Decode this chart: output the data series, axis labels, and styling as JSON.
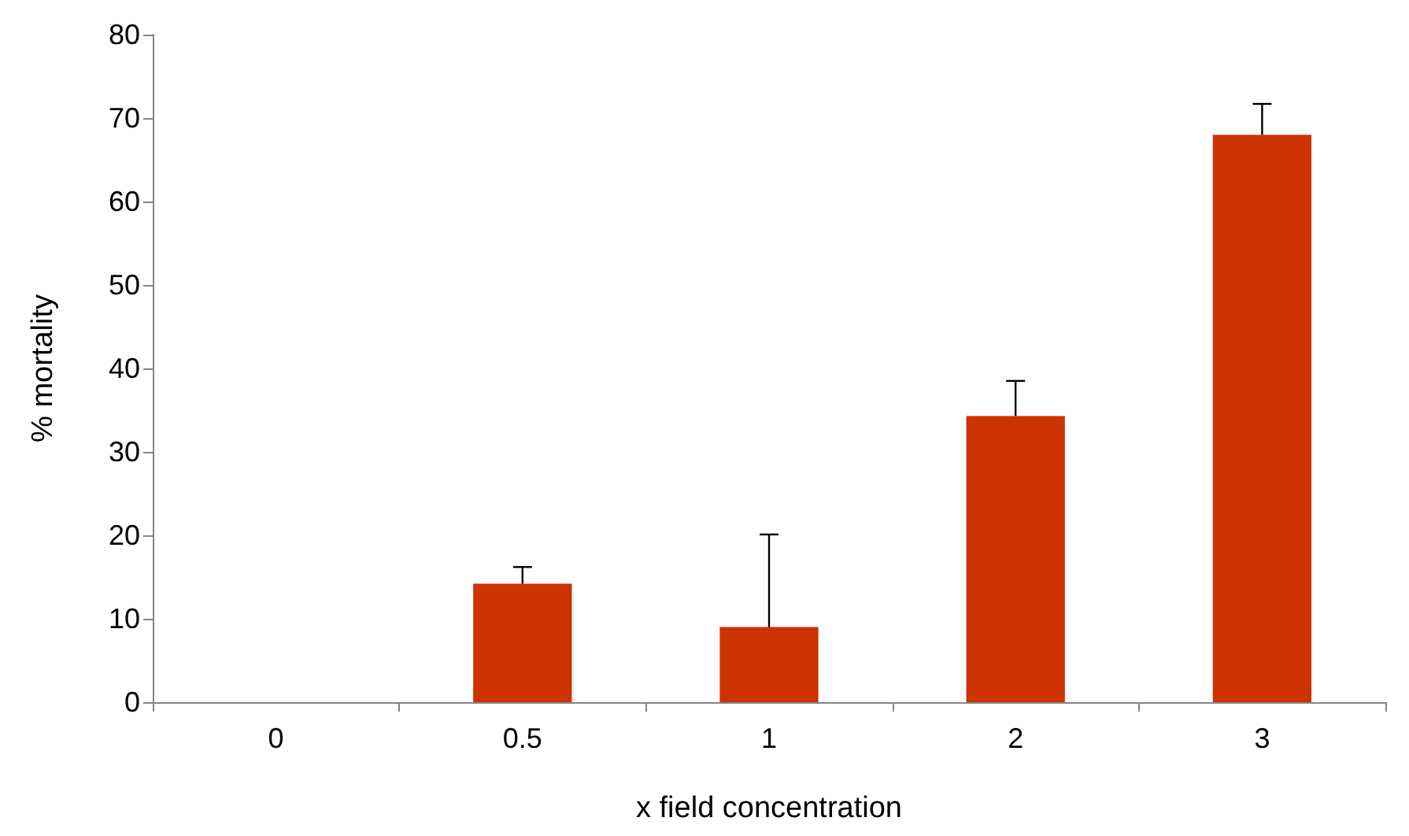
{
  "chart_data": {
    "type": "bar",
    "xlabel": "x field concentration",
    "ylabel": "% mortality",
    "categories": [
      "0",
      "0.5",
      "1",
      "2",
      "3"
    ],
    "values": [
      0,
      14.2,
      9,
      34.3,
      68
    ],
    "errors": [
      null,
      [
        14.2,
        16.2
      ],
      [
        9,
        20.1
      ],
      [
        34.3,
        38.5
      ],
      [
        68,
        71.7
      ]
    ],
    "color": "#cc3300",
    "ylim": [
      0,
      80
    ],
    "yticks": [
      0,
      10,
      20,
      30,
      40,
      50,
      60,
      70,
      80
    ],
    "grid": false
  }
}
